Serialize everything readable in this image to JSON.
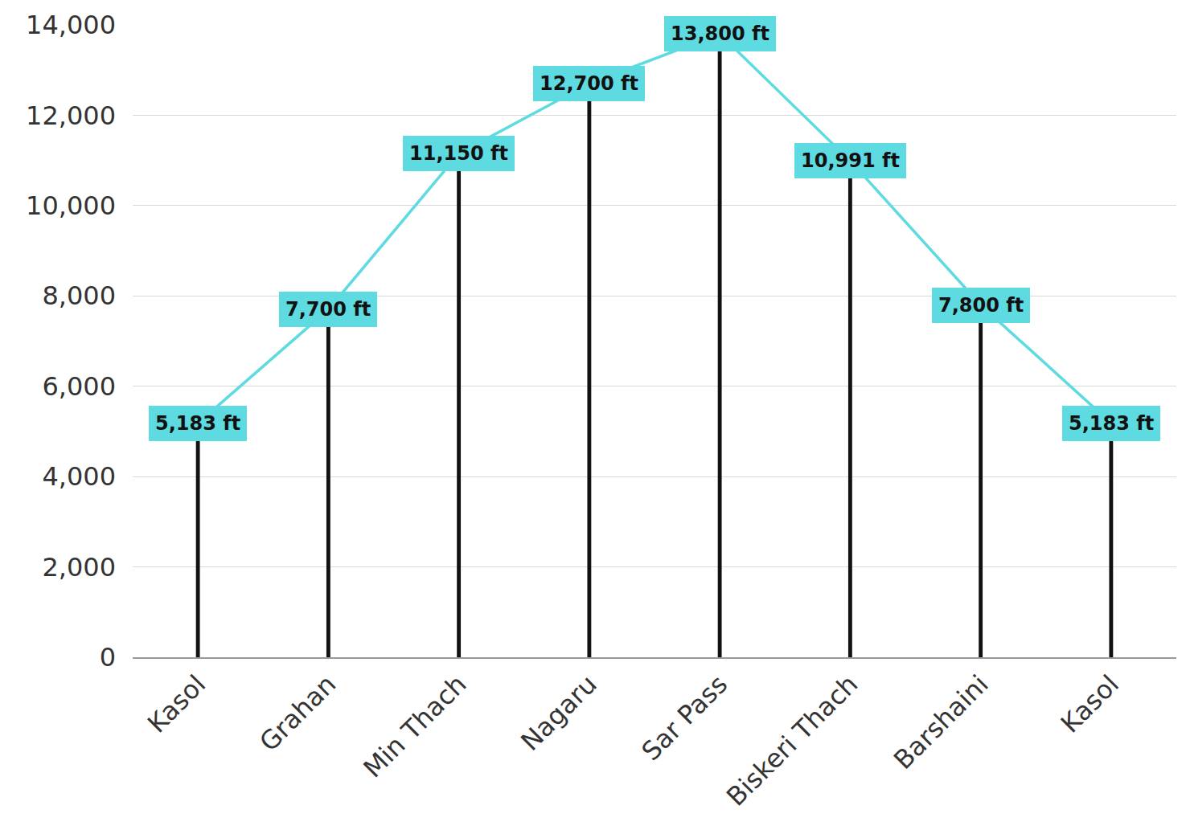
{
  "chart_data": {
    "type": "stem",
    "categories": [
      "Kasol",
      "Grahan",
      "Min Thach",
      "Nagaru",
      "Sar Pass",
      "Biskeri Thach",
      "Barshaini",
      "Kasol"
    ],
    "values": [
      5183,
      7700,
      11150,
      12700,
      13800,
      10991,
      7800,
      5183
    ],
    "value_labels": [
      "5,183 ft",
      "7,700 ft",
      "11,150 ft",
      "12,700 ft",
      "13,800 ft",
      "10,991 ft",
      "7,800 ft",
      "5,183 ft"
    ],
    "color": "#5ddbe0",
    "ylim": [
      0,
      14000
    ],
    "yticks": [
      0,
      {
        "value": 2000,
        "label": "2,000"
      },
      {
        "value": 4000,
        "label": "4,000"
      },
      {
        "value": 6000,
        "label": "6,000"
      },
      {
        "value": 8000,
        "label": "8,000"
      },
      {
        "value": 10000,
        "label": "10,000"
      },
      {
        "value": 12000,
        "label": "12,000"
      },
      {
        "value": 14000,
        "label": "14,000"
      }
    ],
    "grid": true,
    "data_labels": true
  }
}
